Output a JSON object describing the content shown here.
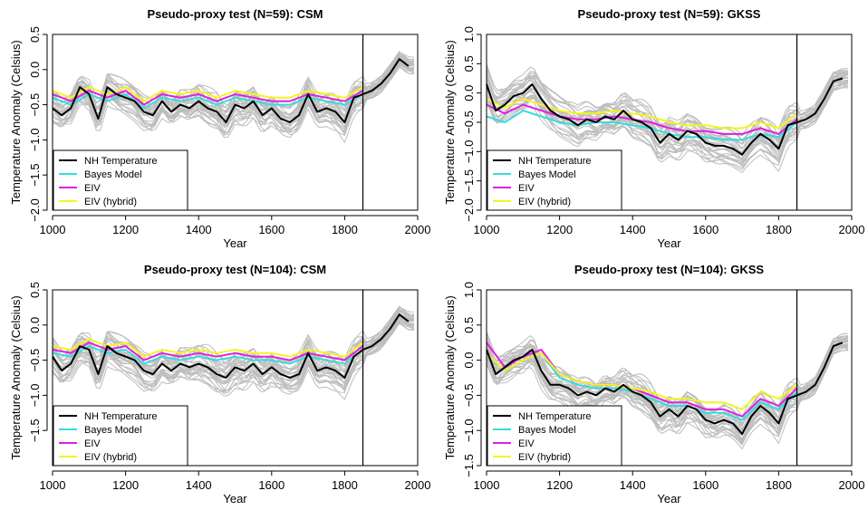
{
  "chart_data": [
    {
      "type": "line",
      "title": "Pseudo-proxy test (N=59): CSM",
      "xlabel": "Year",
      "ylabel": "Temperature Anomaly (Celsius)",
      "xlim": [
        1000,
        2000
      ],
      "ylim": [
        -2.0,
        0.5
      ],
      "xticks": [
        "1000",
        "1200",
        "1400",
        "1600",
        "1800",
        "2000"
      ],
      "yticks": [
        "-2.0",
        "-1.5",
        "-1.0",
        "-0.5",
        "0.0",
        "0.5"
      ],
      "vline_year": 1850,
      "legend_position": "bottom-left",
      "grid": false,
      "ensemble": {
        "color": "#bdbdbd",
        "count": 30,
        "spread": 0.22
      },
      "series": [
        {
          "name": "NH Temperature",
          "color": "#000000",
          "x": [
            1000,
            1025,
            1050,
            1075,
            1100,
            1125,
            1150,
            1175,
            1200,
            1225,
            1250,
            1275,
            1300,
            1325,
            1350,
            1375,
            1400,
            1425,
            1450,
            1475,
            1500,
            1525,
            1550,
            1575,
            1600,
            1625,
            1650,
            1675,
            1700,
            1725,
            1750,
            1775,
            1800,
            1825,
            1850,
            1875,
            1900,
            1925,
            1950,
            1975
          ],
          "y": [
            -0.55,
            -0.65,
            -0.55,
            -0.25,
            -0.35,
            -0.7,
            -0.25,
            -0.35,
            -0.4,
            -0.45,
            -0.6,
            -0.65,
            -0.45,
            -0.6,
            -0.5,
            -0.55,
            -0.45,
            -0.55,
            -0.6,
            -0.75,
            -0.5,
            -0.55,
            -0.45,
            -0.65,
            -0.55,
            -0.7,
            -0.75,
            -0.65,
            -0.35,
            -0.6,
            -0.55,
            -0.6,
            -0.75,
            -0.4,
            -0.35,
            -0.3,
            -0.2,
            -0.05,
            0.15,
            0.05
          ]
        },
        {
          "name": "Bayes Model",
          "color": "#33dddd",
          "x": [
            1000,
            1050,
            1100,
            1150,
            1200,
            1250,
            1300,
            1350,
            1400,
            1450,
            1500,
            1550,
            1600,
            1650,
            1700,
            1750,
            1800,
            1850
          ],
          "y": [
            -0.4,
            -0.5,
            -0.35,
            -0.45,
            -0.35,
            -0.55,
            -0.4,
            -0.45,
            -0.4,
            -0.5,
            -0.4,
            -0.45,
            -0.5,
            -0.5,
            -0.4,
            -0.45,
            -0.5,
            -0.35
          ]
        },
        {
          "name": "EIV",
          "color": "#e020e0",
          "x": [
            1000,
            1050,
            1100,
            1150,
            1200,
            1250,
            1300,
            1350,
            1400,
            1450,
            1500,
            1550,
            1600,
            1650,
            1700,
            1750,
            1800,
            1850
          ],
          "y": [
            -0.35,
            -0.45,
            -0.3,
            -0.4,
            -0.3,
            -0.5,
            -0.35,
            -0.4,
            -0.35,
            -0.45,
            -0.35,
            -0.4,
            -0.45,
            -0.45,
            -0.35,
            -0.4,
            -0.45,
            -0.3
          ]
        },
        {
          "name": "EIV (hybrid)",
          "color": "#f4f420",
          "x": [
            1000,
            1050,
            1100,
            1150,
            1200,
            1250,
            1300,
            1350,
            1400,
            1450,
            1500,
            1550,
            1600,
            1650,
            1700,
            1750,
            1800,
            1850
          ],
          "y": [
            -0.3,
            -0.4,
            -0.25,
            -0.35,
            -0.25,
            -0.45,
            -0.3,
            -0.35,
            -0.3,
            -0.4,
            -0.3,
            -0.35,
            -0.4,
            -0.4,
            -0.3,
            -0.35,
            -0.4,
            -0.25
          ]
        }
      ]
    },
    {
      "type": "line",
      "title": "Pseudo-proxy test (N=59): GKSS",
      "xlabel": "Year",
      "ylabel": "Temperature Anomaly (Celsius)",
      "xlim": [
        1000,
        2000
      ],
      "ylim": [
        -2.0,
        1.0
      ],
      "xticks": [
        "1000",
        "1200",
        "1400",
        "1600",
        "1800",
        "2000"
      ],
      "yticks": [
        "-2.0",
        "-1.5",
        "-1.0",
        "-0.5",
        "0.0",
        "0.5",
        "1.0"
      ],
      "vline_year": 1850,
      "legend_position": "bottom-left",
      "grid": false,
      "ensemble": {
        "color": "#bdbdbd",
        "count": 30,
        "spread": 0.35
      },
      "series": [
        {
          "name": "NH Temperature",
          "color": "#000000",
          "x": [
            1000,
            1025,
            1050,
            1075,
            1100,
            1125,
            1150,
            1175,
            1200,
            1225,
            1250,
            1275,
            1300,
            1325,
            1350,
            1375,
            1400,
            1425,
            1450,
            1475,
            1500,
            1525,
            1550,
            1575,
            1600,
            1625,
            1650,
            1675,
            1700,
            1725,
            1750,
            1775,
            1800,
            1825,
            1850,
            1875,
            1900,
            1925,
            1950,
            1975
          ],
          "y": [
            0.15,
            -0.3,
            -0.2,
            -0.05,
            0.0,
            0.15,
            -0.1,
            -0.3,
            -0.4,
            -0.45,
            -0.55,
            -0.45,
            -0.5,
            -0.4,
            -0.45,
            -0.3,
            -0.45,
            -0.5,
            -0.6,
            -0.85,
            -0.7,
            -0.8,
            -0.65,
            -0.7,
            -0.85,
            -0.9,
            -0.9,
            -0.95,
            -1.05,
            -0.85,
            -0.7,
            -0.8,
            -0.95,
            -0.55,
            -0.5,
            -0.45,
            -0.35,
            -0.1,
            0.2,
            0.25
          ]
        },
        {
          "name": "Bayes Model",
          "color": "#33dddd",
          "x": [
            1000,
            1050,
            1100,
            1150,
            1200,
            1250,
            1300,
            1350,
            1400,
            1450,
            1500,
            1550,
            1600,
            1650,
            1700,
            1750,
            1800,
            1850
          ],
          "y": [
            -0.4,
            -0.5,
            -0.3,
            -0.4,
            -0.5,
            -0.55,
            -0.5,
            -0.5,
            -0.55,
            -0.6,
            -0.7,
            -0.75,
            -0.75,
            -0.8,
            -0.8,
            -0.7,
            -0.75,
            -0.5
          ]
        },
        {
          "name": "EIV",
          "color": "#e020e0",
          "x": [
            1000,
            1050,
            1100,
            1150,
            1200,
            1250,
            1300,
            1350,
            1400,
            1450,
            1500,
            1550,
            1600,
            1650,
            1700,
            1750,
            1800,
            1850
          ],
          "y": [
            -0.2,
            -0.35,
            -0.2,
            -0.3,
            -0.4,
            -0.45,
            -0.45,
            -0.4,
            -0.45,
            -0.5,
            -0.6,
            -0.65,
            -0.65,
            -0.7,
            -0.7,
            -0.6,
            -0.7,
            -0.45
          ]
        },
        {
          "name": "EIV (hybrid)",
          "color": "#f4f420",
          "x": [
            1000,
            1050,
            1100,
            1150,
            1200,
            1250,
            1300,
            1350,
            1400,
            1450,
            1500,
            1550,
            1600,
            1650,
            1700,
            1750,
            1800,
            1850
          ],
          "y": [
            -0.1,
            -0.25,
            -0.1,
            -0.2,
            -0.3,
            -0.35,
            -0.35,
            -0.3,
            -0.35,
            -0.4,
            -0.5,
            -0.55,
            -0.55,
            -0.6,
            -0.6,
            -0.5,
            -0.6,
            -0.35
          ]
        }
      ]
    },
    {
      "type": "line",
      "title": "Pseudo-proxy test (N=104): CSM",
      "xlabel": "Year",
      "ylabel": "Temperature Anomaly (Celsius)",
      "xlim": [
        1000,
        2000
      ],
      "ylim": [
        -2.0,
        0.5
      ],
      "xticks": [
        "1000",
        "1200",
        "1400",
        "1600",
        "1800",
        "2000"
      ],
      "yticks": [
        "-1.5",
        "-1.0",
        "-0.5",
        "0.0",
        "0.5"
      ],
      "vline_year": 1850,
      "legend_position": "bottom-left",
      "grid": false,
      "ensemble": {
        "color": "#bdbdbd",
        "count": 30,
        "spread": 0.25
      },
      "series": [
        {
          "name": "NH Temperature",
          "color": "#000000",
          "x": [
            1000,
            1025,
            1050,
            1075,
            1100,
            1125,
            1150,
            1175,
            1200,
            1225,
            1250,
            1275,
            1300,
            1325,
            1350,
            1375,
            1400,
            1425,
            1450,
            1475,
            1500,
            1525,
            1550,
            1575,
            1600,
            1625,
            1650,
            1675,
            1700,
            1725,
            1750,
            1775,
            1800,
            1825,
            1850,
            1875,
            1900,
            1925,
            1950,
            1975
          ],
          "y": [
            -0.45,
            -0.65,
            -0.55,
            -0.3,
            -0.35,
            -0.7,
            -0.3,
            -0.4,
            -0.45,
            -0.5,
            -0.65,
            -0.7,
            -0.55,
            -0.65,
            -0.55,
            -0.6,
            -0.55,
            -0.6,
            -0.7,
            -0.75,
            -0.6,
            -0.65,
            -0.55,
            -0.7,
            -0.6,
            -0.7,
            -0.75,
            -0.7,
            -0.4,
            -0.65,
            -0.6,
            -0.65,
            -0.75,
            -0.45,
            -0.35,
            -0.3,
            -0.2,
            -0.05,
            0.15,
            0.05
          ]
        },
        {
          "name": "Bayes Model",
          "color": "#33dddd",
          "x": [
            1000,
            1050,
            1100,
            1150,
            1200,
            1250,
            1300,
            1350,
            1400,
            1450,
            1500,
            1550,
            1600,
            1650,
            1700,
            1750,
            1800,
            1850
          ],
          "y": [
            -0.4,
            -0.45,
            -0.3,
            -0.4,
            -0.35,
            -0.55,
            -0.45,
            -0.5,
            -0.45,
            -0.5,
            -0.45,
            -0.5,
            -0.5,
            -0.55,
            -0.45,
            -0.5,
            -0.55,
            -0.35
          ]
        },
        {
          "name": "EIV",
          "color": "#e020e0",
          "x": [
            1000,
            1050,
            1100,
            1150,
            1200,
            1250,
            1300,
            1350,
            1400,
            1450,
            1500,
            1550,
            1600,
            1650,
            1700,
            1750,
            1800,
            1850
          ],
          "y": [
            -0.35,
            -0.4,
            -0.25,
            -0.35,
            -0.3,
            -0.5,
            -0.4,
            -0.45,
            -0.4,
            -0.45,
            -0.4,
            -0.45,
            -0.45,
            -0.5,
            -0.4,
            -0.45,
            -0.5,
            -0.3
          ]
        },
        {
          "name": "EIV (hybrid)",
          "color": "#f4f420",
          "x": [
            1000,
            1050,
            1100,
            1150,
            1200,
            1250,
            1300,
            1350,
            1400,
            1450,
            1500,
            1550,
            1600,
            1650,
            1700,
            1750,
            1800,
            1850
          ],
          "y": [
            -0.3,
            -0.35,
            -0.2,
            -0.3,
            -0.25,
            -0.45,
            -0.35,
            -0.4,
            -0.35,
            -0.4,
            -0.35,
            -0.4,
            -0.4,
            -0.45,
            -0.35,
            -0.4,
            -0.45,
            -0.25
          ]
        }
      ]
    },
    {
      "type": "line",
      "title": "Pseudo-proxy test (N=104): GKSS",
      "xlabel": "Year",
      "ylabel": "Temperature Anomaly (Celsius)",
      "xlim": [
        1000,
        2000
      ],
      "ylim": [
        -1.5,
        1.0
      ],
      "xticks": [
        "1000",
        "1200",
        "1400",
        "1600",
        "1800",
        "2000"
      ],
      "yticks": [
        "-1.5",
        "-1.0",
        "-0.5",
        "0.0",
        "0.5",
        "1.0"
      ],
      "vline_year": 1850,
      "legend_position": "bottom-left",
      "grid": false,
      "ensemble": {
        "color": "#bdbdbd",
        "count": 30,
        "spread": 0.22
      },
      "series": [
        {
          "name": "NH Temperature",
          "color": "#000000",
          "x": [
            1000,
            1025,
            1050,
            1075,
            1100,
            1125,
            1150,
            1175,
            1200,
            1225,
            1250,
            1275,
            1300,
            1325,
            1350,
            1375,
            1400,
            1425,
            1450,
            1475,
            1500,
            1525,
            1550,
            1575,
            1600,
            1625,
            1650,
            1675,
            1700,
            1725,
            1750,
            1775,
            1800,
            1825,
            1850,
            1875,
            1900,
            1925,
            1950,
            1975
          ],
          "y": [
            0.15,
            -0.2,
            -0.1,
            0.0,
            0.05,
            0.15,
            -0.15,
            -0.35,
            -0.35,
            -0.4,
            -0.5,
            -0.45,
            -0.5,
            -0.4,
            -0.45,
            -0.35,
            -0.45,
            -0.5,
            -0.6,
            -0.8,
            -0.7,
            -0.8,
            -0.65,
            -0.7,
            -0.85,
            -0.9,
            -0.85,
            -0.9,
            -1.05,
            -0.8,
            -0.65,
            -0.75,
            -0.9,
            -0.55,
            -0.5,
            -0.45,
            -0.35,
            -0.1,
            0.2,
            0.25
          ]
        },
        {
          "name": "Bayes Model",
          "color": "#33dddd",
          "x": [
            1000,
            1050,
            1100,
            1150,
            1200,
            1250,
            1300,
            1350,
            1400,
            1450,
            1500,
            1550,
            1600,
            1650,
            1700,
            1750,
            1800,
            1850
          ],
          "y": [
            0.1,
            -0.15,
            0.0,
            0.1,
            -0.25,
            -0.35,
            -0.4,
            -0.4,
            -0.45,
            -0.55,
            -0.65,
            -0.65,
            -0.75,
            -0.75,
            -0.85,
            -0.6,
            -0.7,
            -0.45
          ]
        },
        {
          "name": "EIV",
          "color": "#e020e0",
          "x": [
            1000,
            1050,
            1100,
            1150,
            1200,
            1250,
            1300,
            1350,
            1400,
            1450,
            1500,
            1550,
            1600,
            1650,
            1700,
            1750,
            1800,
            1850
          ],
          "y": [
            0.25,
            -0.1,
            0.05,
            0.15,
            -0.2,
            -0.3,
            -0.35,
            -0.35,
            -0.4,
            -0.5,
            -0.6,
            -0.6,
            -0.7,
            -0.7,
            -0.8,
            -0.55,
            -0.65,
            -0.4
          ]
        },
        {
          "name": "EIV (hybrid)",
          "color": "#f4f420",
          "x": [
            1000,
            1050,
            1100,
            1150,
            1200,
            1250,
            1300,
            1350,
            1400,
            1450,
            1500,
            1550,
            1600,
            1650,
            1700,
            1750,
            1800,
            1850
          ],
          "y": [
            0.1,
            -0.15,
            0.0,
            0.1,
            -0.2,
            -0.3,
            -0.35,
            -0.35,
            -0.4,
            -0.45,
            -0.55,
            -0.55,
            -0.6,
            -0.6,
            -0.7,
            -0.45,
            -0.55,
            -0.35
          ]
        }
      ]
    }
  ]
}
